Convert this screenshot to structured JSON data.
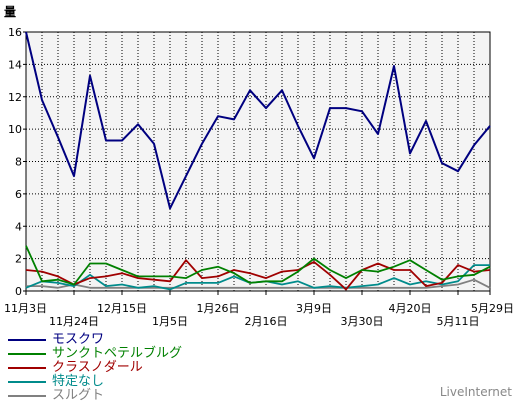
{
  "chart_data": {
    "type": "line",
    "ylabel": "量",
    "ylim": [
      0,
      16
    ],
    "yticks": [
      0,
      2,
      4,
      6,
      8,
      10,
      12,
      14,
      16
    ],
    "grid": true,
    "x_count": 30,
    "x_tick_labels": [
      {
        "index": 0,
        "label": "11月3日",
        "row": 1
      },
      {
        "index": 3,
        "label": "11月24日",
        "row": 2
      },
      {
        "index": 6,
        "label": "12月15日",
        "row": 1
      },
      {
        "index": 9,
        "label": "1月5日",
        "row": 2
      },
      {
        "index": 12,
        "label": "1月26日",
        "row": 1
      },
      {
        "index": 15,
        "label": "2月16日",
        "row": 2
      },
      {
        "index": 18,
        "label": "3月9日",
        "row": 1
      },
      {
        "index": 21,
        "label": "3月30日",
        "row": 2
      },
      {
        "index": 24,
        "label": "4月20日",
        "row": 1
      },
      {
        "index": 27,
        "label": "5月11日",
        "row": 2
      },
      {
        "index": 29,
        "label": "5月29日",
        "row": 1
      }
    ],
    "series": [
      {
        "name": "モスクワ",
        "color": "#000080",
        "values": [
          16,
          11.8,
          9.5,
          7.1,
          13.3,
          9.3,
          9.3,
          10.3,
          9.1,
          5.1,
          7.1,
          9.1,
          10.8,
          10.6,
          12.4,
          11.3,
          12.4,
          10.2,
          8.2,
          11.3,
          11.3,
          11.1,
          9.7,
          13.9,
          8.5,
          10.5,
          7.9,
          7.4,
          9.0,
          10.2
        ]
      },
      {
        "name": "サンクトペテルブルグ",
        "color": "#008000",
        "values": [
          2.8,
          0.6,
          0.7,
          0.4,
          1.7,
          1.7,
          1.3,
          0.9,
          0.9,
          0.9,
          0.8,
          1.3,
          1.5,
          1.1,
          0.5,
          0.6,
          0.6,
          1.2,
          2.0,
          1.3,
          0.8,
          1.3,
          1.2,
          1.5,
          1.9,
          1.3,
          0.7,
          0.9,
          1.0,
          1.5
        ]
      },
      {
        "name": "クラスノダール",
        "color": "#a00000",
        "values": [
          1.3,
          1.2,
          0.9,
          0.4,
          0.8,
          0.9,
          1.1,
          0.8,
          0.7,
          0.6,
          1.9,
          0.8,
          0.9,
          1.3,
          1.1,
          0.8,
          1.2,
          1.3,
          1.8,
          1.0,
          0.1,
          1.3,
          1.7,
          1.3,
          1.3,
          0.3,
          0.5,
          1.6,
          1.2,
          1.3
        ]
      },
      {
        "name": "特定なし",
        "color": "#008b8b",
        "values": [
          0.2,
          0.6,
          0.5,
          0.3,
          1.0,
          0.3,
          0.4,
          0.2,
          0.3,
          0.1,
          0.5,
          0.5,
          0.5,
          0.9,
          0.5,
          0.6,
          0.4,
          0.6,
          0.2,
          0.3,
          0.2,
          0.3,
          0.4,
          0.8,
          0.4,
          0.6,
          0.4,
          0.6,
          1.6,
          1.6
        ]
      },
      {
        "name": "スルグト",
        "color": "#808080",
        "values": [
          0.3,
          0.3,
          0.2,
          0.4,
          0.2,
          0.2,
          0.2,
          0.2,
          0.2,
          0.2,
          0.2,
          0.2,
          0.2,
          0.2,
          0.2,
          0.2,
          0.2,
          0.2,
          0.2,
          0.2,
          0.2,
          0.2,
          0.2,
          0.2,
          0.2,
          0.2,
          0.3,
          0.4,
          0.7,
          0.2
        ]
      }
    ]
  },
  "brand": "LiveInternet"
}
